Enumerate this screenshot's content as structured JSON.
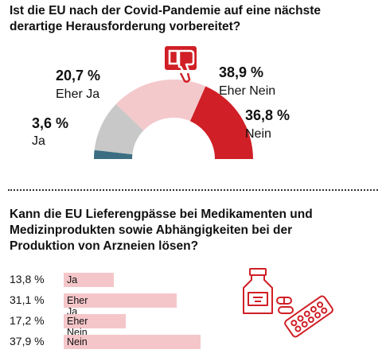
{
  "questions": {
    "q1_title": "Ist die EU nach der Covid-Pandemie auf eine nächste derartige Herausforderung vorbereitet?",
    "q2_title": "Kann die EU Lieferengpässe bei Medikamenten und Medizinprodukten sowie Abhängigkeiten bei der Produktion von Arzneien lösen?"
  },
  "icons": {
    "thumbs_down": "thumbs-down-icon",
    "medicine": "medicine-bottle-pills-icon"
  },
  "chart_data": [
    {
      "type": "pie",
      "subtype": "half-donut",
      "slices": [
        {
          "label": "Ja",
          "value": 3.6,
          "display": "3,6 %",
          "color": "#3b6e82"
        },
        {
          "label": "Eher Ja",
          "value": 20.7,
          "display": "20,7 %",
          "color": "#c8c8c8"
        },
        {
          "label": "Eher Nein",
          "value": 38.9,
          "display": "38,9 %",
          "color": "#f4c9cc"
        },
        {
          "label": "Nein",
          "value": 36.8,
          "display": "36,8 %",
          "color": "#d01f26"
        }
      ]
    },
    {
      "type": "bar",
      "orientation": "horizontal",
      "categories": [
        "Ja",
        "Eher Ja",
        "Eher Nein",
        "Nein"
      ],
      "values": [
        13.8,
        31.1,
        17.2,
        37.9
      ],
      "display": [
        "13,8 %",
        "31,1 %",
        "17,2 %",
        "37,9 %"
      ],
      "color": "#f5c6c9"
    }
  ]
}
